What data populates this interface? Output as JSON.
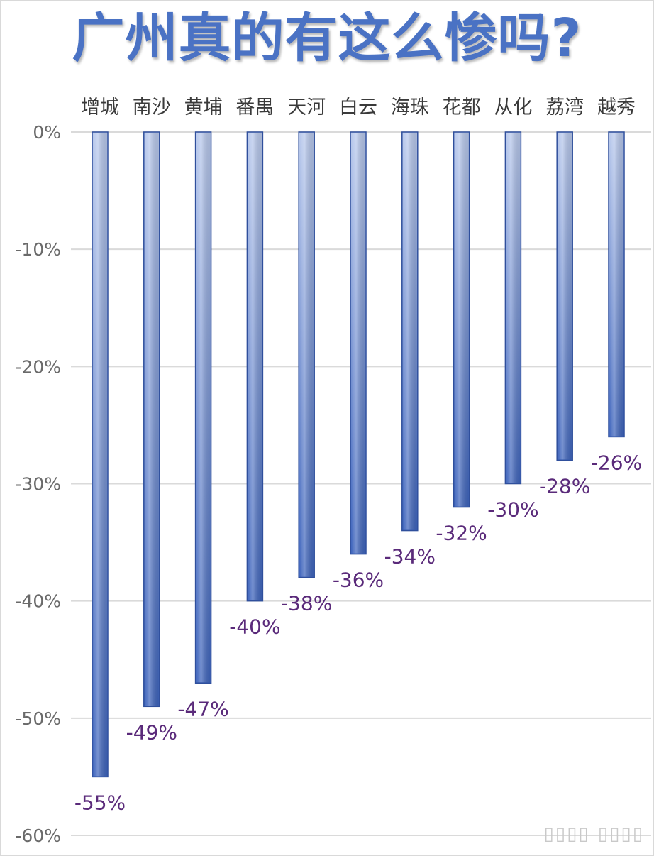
{
  "title": "广州真的有这么惨吗?",
  "watermark": "▯▯▯▯ ▯▯▯▯",
  "colors": {
    "bar_top": "#b9c9ec",
    "bar_bottom": "#3e64bc",
    "bar_edge": "#2f4f9c",
    "grid": "#dadada",
    "data_label": "#5a2a7a"
  },
  "chart_data": {
    "type": "bar",
    "title": "广州真的有这么惨吗?",
    "categories": [
      "增城",
      "南沙",
      "黄埔",
      "番禺",
      "天河",
      "白云",
      "海珠",
      "花都",
      "从化",
      "荔湾",
      "越秀"
    ],
    "values": [
      -55,
      -49,
      -47,
      -40,
      -38,
      -36,
      -34,
      -32,
      -30,
      -28,
      -26
    ],
    "data_labels": [
      "-55%",
      "-49%",
      "-47%",
      "-40%",
      "-38%",
      "-36%",
      "-34%",
      "-32%",
      "-30%",
      "-28%",
      "-26%"
    ],
    "ylim": [
      -60,
      0
    ],
    "yticks": [
      0,
      -10,
      -20,
      -30,
      -40,
      -50,
      -60
    ],
    "ytick_labels": [
      "0%",
      "-10%",
      "-20%",
      "-30%",
      "-40%",
      "-50%",
      "-60%"
    ],
    "category_axis_position": "top",
    "grid": true,
    "legend": "none",
    "xlabel": "",
    "ylabel": ""
  }
}
